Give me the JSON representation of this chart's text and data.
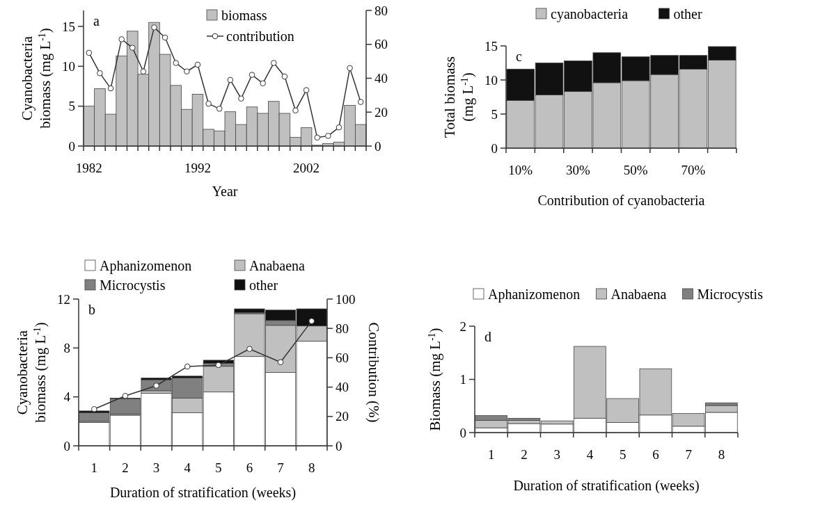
{
  "chart_data": [
    {
      "type": "bar",
      "xlabel": "Year",
      "ylabel": "Cyanobacteria biomass (mg L$^{-1}$)",
      "annotations": [
        "a"
      ],
      "categories": [
        "1982",
        null,
        null,
        null,
        null,
        null,
        null,
        null,
        null,
        null,
        "1992",
        null,
        null,
        null,
        null,
        null,
        null,
        null,
        null,
        null,
        "2002",
        null,
        null,
        null,
        null,
        null
      ],
      "series": [
        {
          "name": "biomass",
          "type": "bar",
          "color": "#c0c0c0",
          "values": [
            5,
            7.2,
            4,
            11.3,
            14.4,
            9,
            15.5,
            11.5,
            7.6,
            4.6,
            6.5,
            2.1,
            1.9,
            4.3,
            2.7,
            4.9,
            4.1,
            5.6,
            4.1,
            1.1,
            2.3,
            0.1,
            0.3,
            0.5,
            5.1,
            2.7
          ]
        },
        {
          "name": "contribution",
          "type": "line",
          "axis": "y2",
          "color": "#333333",
          "values": [
            55,
            43,
            34,
            63,
            58,
            44,
            70,
            64,
            49,
            44,
            48,
            25,
            22,
            39,
            28,
            42,
            37,
            49,
            41,
            21,
            33,
            5,
            6,
            11,
            46,
            26
          ]
        }
      ],
      "ylim": [
        0,
        17
      ],
      "yticks": [
        0,
        5,
        10,
        15
      ],
      "y2lim": [
        0,
        80
      ],
      "y2ticks": [
        0,
        20,
        40,
        60,
        80
      ],
      "marker": "circle",
      "legend": "top right"
    },
    {
      "type": "bar",
      "xlabel": "Contribution of cyanobacteria",
      "ylabel": "Total biomass (mg L$^{-1}$)",
      "annotations": [
        "c"
      ],
      "categories": [
        "10%",
        null,
        "30%",
        null,
        "50%",
        null,
        "70%",
        null
      ],
      "stacked": true,
      "series": [
        {
          "name": "cyanobacteria",
          "color": "#c0c0c0",
          "values": [
            7.0,
            7.8,
            8.3,
            9.6,
            9.9,
            10.8,
            11.6,
            12.9
          ]
        },
        {
          "name": "other",
          "color": "#111111",
          "values": [
            4.6,
            4.7,
            4.5,
            4.4,
            3.5,
            2.8,
            2.0,
            2.0
          ]
        }
      ],
      "ylim": [
        0,
        15
      ],
      "yticks": [
        0,
        5,
        10,
        15
      ],
      "legend": "top"
    },
    {
      "type": "bar",
      "xlabel": "Duration of stratification (weeks)",
      "ylabel": "Cyanobacteria biomass (mg L$^{-1}$)",
      "y2label": "Contribution (%)",
      "annotations": [
        "b"
      ],
      "categories": [
        "1",
        "2",
        "3",
        "4",
        "5",
        "6",
        "7",
        "8"
      ],
      "stacked": true,
      "series": [
        {
          "name": "Aphanizomenon",
          "color": "#ffffff",
          "values": [
            1.9,
            2.5,
            4.3,
            2.7,
            4.4,
            7.3,
            6.0,
            8.55
          ]
        },
        {
          "name": "Anabaena",
          "color": "#c0c0c0",
          "values": [
            0.1,
            0.1,
            0.2,
            1.2,
            2.1,
            3.5,
            3.85,
            1.25
          ]
        },
        {
          "name": "Microcystis",
          "color": "#808080",
          "values": [
            0.7,
            1.25,
            0.9,
            1.65,
            0.25,
            0.1,
            0.4,
            0
          ]
        },
        {
          "name": "other",
          "color": "#111111",
          "values": [
            0.15,
            0.05,
            0.15,
            0.15,
            0.25,
            0.3,
            0.85,
            1.4
          ]
        },
        {
          "type": "line",
          "axis": "y2",
          "color": "#333333",
          "values": [
            25,
            34,
            41,
            54,
            55,
            66,
            57,
            85
          ]
        }
      ],
      "ylim": [
        0,
        12
      ],
      "yticks": [
        0,
        4,
        8,
        12
      ],
      "y2lim": [
        0,
        100
      ],
      "y2ticks": [
        0,
        20,
        40,
        60,
        80,
        100
      ],
      "marker": "circle",
      "legend": "top"
    },
    {
      "type": "bar",
      "xlabel": "Duration of stratification (weeks)",
      "ylabel": "Biomass (mg L$^{-1}$)",
      "annotations": [
        "d"
      ],
      "categories": [
        "1",
        "2",
        "3",
        "4",
        "5",
        "6",
        "7",
        "8"
      ],
      "stacked": true,
      "series": [
        {
          "name": "Aphanizomenon",
          "color": "#ffffff",
          "values": [
            0.09,
            0.17,
            0.16,
            0.27,
            0.19,
            0.33,
            0.12,
            0.38
          ]
        },
        {
          "name": "Anabaena",
          "color": "#c0c0c0",
          "values": [
            0.14,
            0.06,
            0.06,
            1.35,
            0.45,
            0.87,
            0.24,
            0.13
          ]
        },
        {
          "name": "Microcystis",
          "color": "#808080",
          "values": [
            0.09,
            0.04,
            0,
            0,
            0,
            0,
            0,
            0.05
          ]
        }
      ],
      "ylim": [
        0,
        2
      ],
      "yticks": [
        0,
        1,
        2
      ],
      "legend": "top"
    }
  ]
}
